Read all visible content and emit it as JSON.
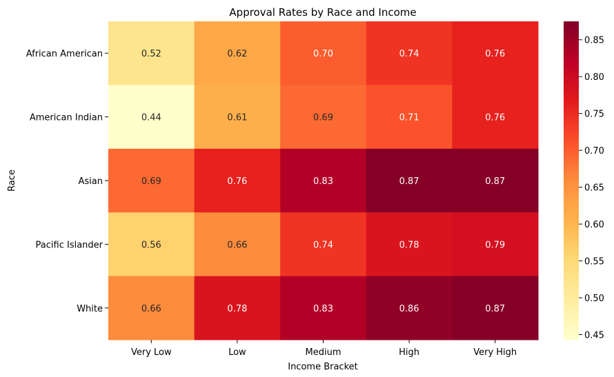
{
  "chart_data": {
    "type": "heatmap",
    "title": "Approval Rates by Race and Income",
    "xlabel": "Income Bracket",
    "ylabel": "Race",
    "x_categories": [
      "Very Low",
      "Low",
      "Medium",
      "High",
      "Very High"
    ],
    "y_categories": [
      "African American",
      "American Indian",
      "Asian",
      "Pacific Islander",
      "White"
    ],
    "values": [
      [
        0.52,
        0.62,
        0.7,
        0.74,
        0.76
      ],
      [
        0.44,
        0.61,
        0.69,
        0.71,
        0.76
      ],
      [
        0.69,
        0.76,
        0.83,
        0.87,
        0.87
      ],
      [
        0.56,
        0.66,
        0.74,
        0.78,
        0.79
      ],
      [
        0.66,
        0.78,
        0.83,
        0.86,
        0.87
      ]
    ],
    "value_format": "0.00",
    "colormap": "YlOrRd",
    "colorbar": {
      "vmin": 0.443,
      "vmax": 0.875,
      "ticks": [
        "0.45",
        "0.50",
        "0.55",
        "0.60",
        "0.65",
        "0.70",
        "0.75",
        "0.80",
        "0.85"
      ]
    }
  }
}
